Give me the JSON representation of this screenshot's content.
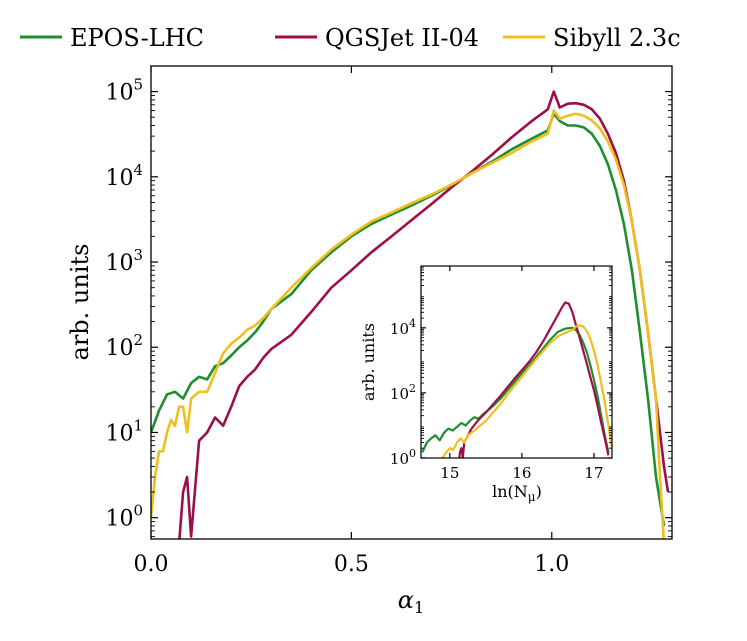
{
  "chart_data": [
    {
      "type": "line",
      "xlabel": "α",
      "xlabel_sub": "1",
      "ylabel": "arb. units",
      "yscale": "log",
      "xlim": [
        0.0,
        1.3
      ],
      "ylim_log10": [
        -0.25,
        5.3
      ],
      "xticks": [
        0.0,
        0.5,
        1.0
      ],
      "xtick_labels": [
        "0.0",
        "0.5",
        "1.0"
      ],
      "yticks_log10": [
        0,
        1,
        2,
        3,
        4,
        5
      ],
      "ytick_base": "10",
      "ytick_exps": [
        "0",
        "1",
        "2",
        "3",
        "4",
        "5"
      ],
      "legend": {
        "placement": "top-outside",
        "entries": [
          "EPOS-LHC",
          "QGSJet II-04",
          "Sibyll 2.3c"
        ]
      },
      "series": [
        {
          "name": "EPOS-LHC",
          "color": "#1e8f2e",
          "x": [
            0.0,
            0.02,
            0.04,
            0.06,
            0.08,
            0.1,
            0.12,
            0.14,
            0.16,
            0.18,
            0.2,
            0.22,
            0.24,
            0.26,
            0.28,
            0.3,
            0.35,
            0.4,
            0.45,
            0.5,
            0.55,
            0.6,
            0.65,
            0.7,
            0.75,
            0.8,
            0.85,
            0.9,
            0.95,
            0.99,
            1.005,
            1.02,
            1.04,
            1.06,
            1.08,
            1.1,
            1.12,
            1.14,
            1.16,
            1.18,
            1.2,
            1.22,
            1.24,
            1.26,
            1.28
          ],
          "y": [
            10,
            18,
            28,
            30,
            25,
            38,
            45,
            42,
            60,
            65,
            80,
            100,
            120,
            150,
            200,
            280,
            420,
            800,
            1300,
            2000,
            2800,
            3600,
            4600,
            6000,
            8000,
            11000,
            15000,
            21000,
            28000,
            35000,
            55000,
            45000,
            40000,
            40000,
            38000,
            32000,
            23000,
            14000,
            7000,
            2800,
            800,
            150,
            25,
            3,
            0.8
          ]
        },
        {
          "name": "QGSJet II-04",
          "color": "#9e0e48",
          "x": [
            0.07,
            0.08,
            0.09,
            0.1,
            0.12,
            0.14,
            0.16,
            0.18,
            0.2,
            0.22,
            0.24,
            0.26,
            0.28,
            0.3,
            0.35,
            0.4,
            0.45,
            0.5,
            0.55,
            0.6,
            0.65,
            0.7,
            0.75,
            0.8,
            0.85,
            0.9,
            0.95,
            0.99,
            1.005,
            1.02,
            1.04,
            1.06,
            1.08,
            1.1,
            1.12,
            1.14,
            1.16,
            1.18,
            1.2,
            1.22,
            1.24,
            1.26,
            1.28,
            1.29
          ],
          "y": [
            0.5,
            2,
            3,
            0.6,
            8,
            10,
            15,
            12,
            20,
            35,
            45,
            55,
            75,
            95,
            140,
            260,
            500,
            800,
            1300,
            2000,
            3100,
            4800,
            7500,
            11500,
            18000,
            29000,
            45000,
            62000,
            100000,
            65000,
            72000,
            73000,
            70000,
            62000,
            48000,
            32000,
            19000,
            9000,
            3000,
            800,
            150,
            25,
            4,
            2
          ]
        },
        {
          "name": "Sibyll 2.3c",
          "color": "#f0be1e",
          "x": [
            0.0,
            0.01,
            0.02,
            0.03,
            0.04,
            0.05,
            0.06,
            0.07,
            0.08,
            0.09,
            0.1,
            0.12,
            0.14,
            0.16,
            0.18,
            0.2,
            0.22,
            0.24,
            0.26,
            0.28,
            0.3,
            0.35,
            0.4,
            0.45,
            0.5,
            0.55,
            0.6,
            0.65,
            0.7,
            0.75,
            0.8,
            0.85,
            0.9,
            0.95,
            0.99,
            1.005,
            1.02,
            1.04,
            1.06,
            1.08,
            1.1,
            1.12,
            1.14,
            1.16,
            1.18,
            1.2,
            1.22,
            1.24,
            1.26,
            1.27,
            1.28
          ],
          "y": [
            1,
            3,
            6,
            6,
            10,
            14,
            12,
            20,
            20,
            10,
            25,
            30,
            30,
            50,
            85,
            110,
            130,
            160,
            180,
            220,
            280,
            500,
            850,
            1400,
            2100,
            3000,
            3800,
            4900,
            6200,
            8100,
            11000,
            14500,
            19000,
            26000,
            32000,
            60000,
            48000,
            52000,
            55000,
            52000,
            46000,
            37000,
            26000,
            16000,
            8000,
            3000,
            800,
            150,
            25,
            3,
            0.5
          ]
        }
      ]
    },
    {
      "type": "line",
      "role": "inset",
      "xlabel": "ln(N",
      "xlabel_sub": "μ",
      "xlabel_close": ")",
      "ylabel": "arb. units",
      "yscale": "log",
      "xlim": [
        14.6,
        17.25
      ],
      "ylim_log10": [
        0.0,
        5.9
      ],
      "xticks": [
        15,
        16,
        17
      ],
      "xtick_labels": [
        "15",
        "16",
        "17"
      ],
      "yticks_log10": [
        0,
        2,
        4
      ],
      "ytick_base": "10",
      "ytick_exps": [
        "0",
        "2",
        "4"
      ],
      "series": [
        {
          "name": "EPOS-LHC",
          "color": "#1e8f2e",
          "x": [
            14.62,
            14.68,
            14.74,
            14.8,
            14.86,
            14.92,
            14.98,
            15.04,
            15.1,
            15.16,
            15.22,
            15.28,
            15.34,
            15.4,
            15.46,
            15.52,
            15.6,
            15.7,
            15.8,
            15.9,
            16.0,
            16.1,
            16.2,
            16.3,
            16.4,
            16.5,
            16.6,
            16.7,
            16.75,
            16.8,
            16.85,
            16.9,
            16.95,
            17.0,
            17.05,
            17.1,
            17.15,
            17.2
          ],
          "y": [
            1.5,
            3,
            4,
            5,
            3.5,
            6,
            8,
            7,
            9,
            12,
            10,
            14,
            18,
            16,
            22,
            28,
            40,
            65,
            120,
            220,
            400,
            700,
            1300,
            2400,
            4500,
            7500,
            9500,
            10000,
            8500,
            6000,
            3500,
            1800,
            700,
            250,
            80,
            20,
            5,
            1.5
          ]
        },
        {
          "name": "QGSJet II-04",
          "color": "#9e0e48",
          "x": [
            15.12,
            15.14,
            15.16,
            15.18,
            15.2,
            15.3,
            15.4,
            15.5,
            15.6,
            15.7,
            15.8,
            15.9,
            16.0,
            16.1,
            16.2,
            16.3,
            16.4,
            16.5,
            16.55,
            16.6,
            16.65,
            16.7,
            16.75,
            16.8,
            16.85,
            16.9,
            16.95,
            17.0,
            17.05,
            17.1,
            17.15,
            17.2
          ],
          "y": [
            0.5,
            1.5,
            2,
            1,
            3,
            8,
            15,
            25,
            45,
            80,
            150,
            280,
            500,
            900,
            1800,
            4000,
            10000,
            25000,
            40000,
            60000,
            55000,
            30000,
            12000,
            5000,
            2000,
            800,
            300,
            120,
            40,
            12,
            4,
            1.2
          ]
        },
        {
          "name": "Sibyll 2.3c",
          "color": "#f0be1e",
          "x": [
            14.9,
            14.95,
            15.0,
            15.05,
            15.1,
            15.15,
            15.2,
            15.25,
            15.3,
            15.4,
            15.5,
            15.6,
            15.7,
            15.8,
            15.9,
            16.0,
            16.1,
            16.2,
            16.3,
            16.4,
            16.5,
            16.6,
            16.7,
            16.75,
            16.8,
            16.85,
            16.9,
            16.95,
            17.0,
            17.05,
            17.1,
            17.15,
            17.2,
            17.25
          ],
          "y": [
            1,
            1.5,
            2,
            1.8,
            3,
            4,
            3,
            5,
            6,
            9,
            14,
            25,
            45,
            90,
            170,
            320,
            600,
            1100,
            2000,
            3600,
            5500,
            7000,
            8500,
            11000,
            12000,
            11000,
            8000,
            4500,
            2000,
            700,
            200,
            50,
            10,
            2
          ]
        }
      ]
    }
  ]
}
